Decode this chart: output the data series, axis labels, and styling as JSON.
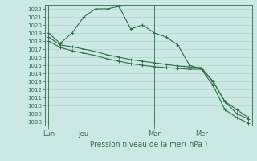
{
  "bg_color": "#cce8e4",
  "grid_color": "#b0d4ce",
  "line_color": "#2d6e45",
  "xlabel": "Pression niveau de la mer( hPa )",
  "ylim": [
    1007.5,
    1022.5
  ],
  "yticks": [
    1008,
    1009,
    1010,
    1011,
    1012,
    1013,
    1014,
    1015,
    1016,
    1017,
    1018,
    1019,
    1020,
    1021,
    1022
  ],
  "xtick_labels": [
    "Lun",
    "Jeu",
    "Mar",
    "Mer"
  ],
  "xtick_positions": [
    0,
    3,
    9,
    13
  ],
  "total_points": 18,
  "series1": [
    1019,
    1017.7,
    1019,
    1021,
    1022,
    1022,
    1022.3,
    1019.5,
    1020,
    1019,
    1018.5,
    1017.5,
    1015,
    1014.5,
    1013,
    1010.5,
    1009,
    1008.3
  ],
  "series2": [
    1018.5,
    1017.5,
    1017.3,
    1017,
    1016.7,
    1016.3,
    1016,
    1015.7,
    1015.5,
    1015.3,
    1015.1,
    1014.9,
    1014.8,
    1014.7,
    1013,
    1010.5,
    1009.5,
    1008.5
  ],
  "series3": [
    1018,
    1017.2,
    1016.8,
    1016.5,
    1016.2,
    1015.8,
    1015.5,
    1015.2,
    1015,
    1014.8,
    1014.7,
    1014.6,
    1014.5,
    1014.5,
    1012.5,
    1009.5,
    1008.5,
    1007.8
  ]
}
